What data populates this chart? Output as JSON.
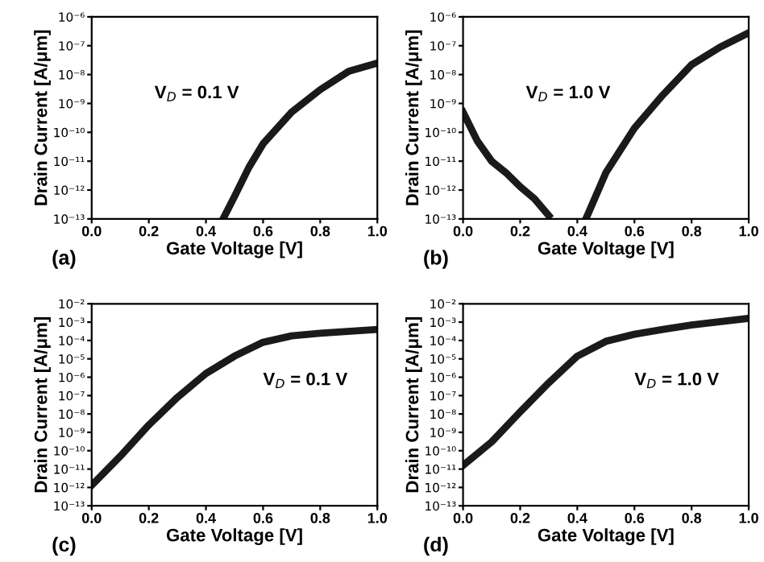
{
  "chart_data": [
    {
      "type": "line",
      "xlabel": "Gate Voltage [V]",
      "ylabel": "Drain Current [A/μm]",
      "log": "y",
      "grid": false,
      "legend": false,
      "marker": "none",
      "line_style": "solid",
      "xlim": [
        0,
        1
      ],
      "xticks": [
        {
          "value": 0,
          "label": "0.0"
        },
        {
          "value": 0.2,
          "label": "0.2"
        },
        {
          "value": 0.4,
          "label": "0.4"
        },
        {
          "value": 0.6,
          "label": "0.6"
        },
        {
          "value": 0.8,
          "label": "0.8"
        },
        {
          "value": 1,
          "label": "1.0"
        }
      ],
      "ylim": [
        1e-13,
        1e-06
      ],
      "yticks": [
        {
          "value": 1e-13,
          "label": "10⁻¹³"
        },
        {
          "value": 1e-12,
          "label": "10⁻¹²"
        },
        {
          "value": 1e-11,
          "label": "10⁻¹¹"
        },
        {
          "value": 1e-10,
          "label": "10⁻¹⁰"
        },
        {
          "value": 1e-09,
          "label": "10⁻⁹"
        },
        {
          "value": 1e-08,
          "label": "10⁻⁸"
        },
        {
          "value": 1e-07,
          "label": "10⁻⁷"
        },
        {
          "value": 1e-06,
          "label": "10⁻⁶"
        }
      ],
      "annotations": [
        "(a)",
        "V$_{D}$ = 0.1 V"
      ],
      "series": [
        {
          "color": "#1a1a1a",
          "x": [
            0.46,
            0.5,
            0.55,
            0.6,
            0.7,
            0.8,
            0.9,
            1.0
          ],
          "values": [
            1e-13,
            6e-13,
            6e-12,
            4e-11,
            5e-10,
            3e-09,
            1.3e-08,
            2.5e-08
          ]
        }
      ]
    },
    {
      "type": "line",
      "xlabel": "Gate Voltage [V]",
      "ylabel": "Drain Current [A/μm]",
      "log": "y",
      "grid": false,
      "legend": false,
      "marker": "none",
      "line_style": "solid",
      "xlim": [
        0,
        1
      ],
      "xticks": [
        {
          "value": 0,
          "label": "0.0"
        },
        {
          "value": 0.2,
          "label": "0.2"
        },
        {
          "value": 0.4,
          "label": "0.4"
        },
        {
          "value": 0.6,
          "label": "0.6"
        },
        {
          "value": 0.8,
          "label": "0.8"
        },
        {
          "value": 1,
          "label": "1.0"
        }
      ],
      "ylim": [
        1e-13,
        1e-06
      ],
      "yticks": [
        {
          "value": 1e-13,
          "label": "10⁻¹³"
        },
        {
          "value": 1e-12,
          "label": "10⁻¹²"
        },
        {
          "value": 1e-11,
          "label": "10⁻¹¹"
        },
        {
          "value": 1e-10,
          "label": "10⁻¹⁰"
        },
        {
          "value": 1e-09,
          "label": "10⁻⁹"
        },
        {
          "value": 1e-08,
          "label": "10⁻⁸"
        },
        {
          "value": 1e-07,
          "label": "10⁻⁷"
        },
        {
          "value": 1e-06,
          "label": "10⁻⁶"
        }
      ],
      "annotations": [
        "(b)",
        "V$_{D}$ = 1.0 V"
      ],
      "series": [
        {
          "color": "#1a1a1a",
          "x": [
            0,
            0.05,
            0.1,
            0.15,
            0.2,
            0.25,
            0.3
          ],
          "values": [
            5e-10,
            5e-11,
            1e-11,
            4e-12,
            1.3e-12,
            5e-13,
            1.3e-13
          ]
        },
        {
          "color": "#1a1a1a",
          "x": [
            0.43,
            0.5,
            0.6,
            0.7,
            0.8,
            0.9,
            1.0
          ],
          "values": [
            1e-13,
            4e-12,
            1.4e-10,
            2e-09,
            2.2e-08,
            9e-08,
            2.8e-07
          ]
        }
      ]
    },
    {
      "type": "line",
      "xlabel": "Gate Voltage [V]",
      "ylabel": "Drain Current [A/μm]",
      "log": "y",
      "grid": false,
      "legend": false,
      "marker": "none",
      "line_style": "solid",
      "xlim": [
        0,
        1
      ],
      "xticks": [
        {
          "value": 0,
          "label": "0.0"
        },
        {
          "value": 0.2,
          "label": "0.2"
        },
        {
          "value": 0.4,
          "label": "0.4"
        },
        {
          "value": 0.6,
          "label": "0.6"
        },
        {
          "value": 0.8,
          "label": "0.8"
        },
        {
          "value": 1,
          "label": "1.0"
        }
      ],
      "ylim": [
        1e-13,
        0.01
      ],
      "yticks": [
        {
          "value": 1e-13,
          "label": "10⁻¹³"
        },
        {
          "value": 1e-12,
          "label": "10⁻¹²"
        },
        {
          "value": 1e-11,
          "label": "10⁻¹¹"
        },
        {
          "value": 1e-10,
          "label": "10⁻¹⁰"
        },
        {
          "value": 1e-09,
          "label": "10⁻⁹"
        },
        {
          "value": 1e-08,
          "label": "10⁻⁸"
        },
        {
          "value": 1e-07,
          "label": "10⁻⁷"
        },
        {
          "value": 1e-06,
          "label": "10⁻⁶"
        },
        {
          "value": 1e-05,
          "label": "10⁻⁵"
        },
        {
          "value": 0.0001,
          "label": "10⁻⁴"
        },
        {
          "value": 0.001,
          "label": "10⁻³"
        },
        {
          "value": 0.01,
          "label": "10⁻²"
        }
      ],
      "annotations": [
        "(c)",
        "V$_{D}$ = 0.1 V"
      ],
      "series": [
        {
          "color": "#1a1a1a",
          "x": [
            0,
            0.1,
            0.2,
            0.3,
            0.4,
            0.5,
            0.6,
            0.7,
            0.8,
            1.0
          ],
          "values": [
            1.3e-12,
            5e-11,
            2.5e-09,
            8e-08,
            1.6e-06,
            1.4e-05,
            8e-05,
            0.00018,
            0.00025,
            0.0004
          ]
        }
      ]
    },
    {
      "type": "line",
      "xlabel": "Gate Voltage [V]",
      "ylabel": "Drain Current [A/μm]",
      "log": "y",
      "grid": false,
      "legend": false,
      "marker": "none",
      "line_style": "solid",
      "xlim": [
        0,
        1
      ],
      "xticks": [
        {
          "value": 0,
          "label": "0.0"
        },
        {
          "value": 0.2,
          "label": "0.2"
        },
        {
          "value": 0.4,
          "label": "0.4"
        },
        {
          "value": 0.6,
          "label": "0.6"
        },
        {
          "value": 0.8,
          "label": "0.8"
        },
        {
          "value": 1,
          "label": "1.0"
        }
      ],
      "ylim": [
        1e-13,
        0.01
      ],
      "yticks": [
        {
          "value": 1e-13,
          "label": "10⁻¹³"
        },
        {
          "value": 1e-12,
          "label": "10⁻¹²"
        },
        {
          "value": 1e-11,
          "label": "10⁻¹¹"
        },
        {
          "value": 1e-10,
          "label": "10⁻¹⁰"
        },
        {
          "value": 1e-09,
          "label": "10⁻⁹"
        },
        {
          "value": 1e-08,
          "label": "10⁻⁸"
        },
        {
          "value": 1e-07,
          "label": "10⁻⁷"
        },
        {
          "value": 1e-06,
          "label": "10⁻⁶"
        },
        {
          "value": 1e-05,
          "label": "10⁻⁵"
        },
        {
          "value": 0.0001,
          "label": "10⁻⁴"
        },
        {
          "value": 0.001,
          "label": "10⁻³"
        },
        {
          "value": 0.01,
          "label": "10⁻²"
        }
      ],
      "annotations": [
        "(d)",
        "V$_{D}$ = 1.0 V"
      ],
      "series": [
        {
          "color": "#1a1a1a",
          "x": [
            0,
            0.1,
            0.2,
            0.3,
            0.4,
            0.5,
            0.6,
            0.7,
            0.8,
            1.0
          ],
          "values": [
            1.6e-11,
            3e-10,
            1.3e-08,
            5e-07,
            1.4e-05,
            9e-05,
            0.00022,
            0.0004,
            0.0007,
            0.0016
          ]
        }
      ]
    }
  ]
}
